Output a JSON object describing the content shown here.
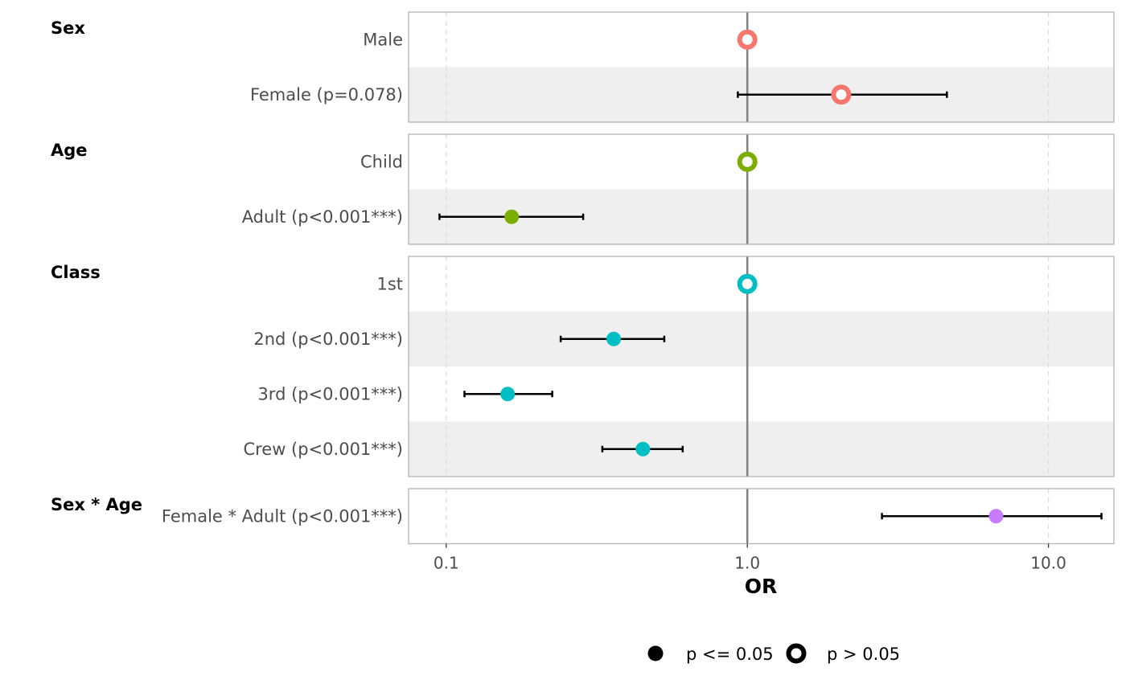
{
  "chart_data": {
    "type": "scatter",
    "xlabel": "OR",
    "x_scale": "log",
    "xlim": [
      0.075,
      16.5
    ],
    "x_ticks": [
      {
        "value": 0.1,
        "label": "0.1"
      },
      {
        "value": 1.0,
        "label": "1.0"
      },
      {
        "value": 10.0,
        "label": "10.0"
      }
    ],
    "reference_line": 1.0,
    "grid": true,
    "groups": [
      {
        "name": "Sex",
        "color": "#f8766d",
        "rows": [
          {
            "label": "Male",
            "or": 1.0,
            "lower": null,
            "upper": null,
            "significant": false
          },
          {
            "label": "Female (p=0.078)",
            "or": 2.05,
            "lower": 0.93,
            "upper": 4.6,
            "significant": false
          }
        ]
      },
      {
        "name": "Age",
        "color": "#7cae00",
        "rows": [
          {
            "label": "Child",
            "or": 1.0,
            "lower": null,
            "upper": null,
            "significant": false
          },
          {
            "label": "Adult (p<0.001***)",
            "or": 0.165,
            "lower": 0.095,
            "upper": 0.285,
            "significant": true
          }
        ]
      },
      {
        "name": "Class",
        "color": "#00bfc4",
        "rows": [
          {
            "label": "1st",
            "or": 1.0,
            "lower": null,
            "upper": null,
            "significant": false
          },
          {
            "label": "2nd (p<0.001***)",
            "or": 0.36,
            "lower": 0.24,
            "upper": 0.53,
            "significant": true
          },
          {
            "label": "3rd (p<0.001***)",
            "or": 0.16,
            "lower": 0.115,
            "upper": 0.225,
            "significant": true
          },
          {
            "label": "Crew (p<0.001***)",
            "or": 0.45,
            "lower": 0.33,
            "upper": 0.61,
            "significant": true
          }
        ]
      },
      {
        "name": "Sex * Age",
        "color": "#c77cff",
        "rows": [
          {
            "label": "Female * Adult (p<0.001***)",
            "or": 6.7,
            "lower": 2.8,
            "upper": 15.0,
            "significant": true
          }
        ]
      }
    ],
    "legend": {
      "placement": "bottom",
      "items": [
        {
          "label": "p <= 0.05",
          "marker": "filled"
        },
        {
          "label": "p > 0.05",
          "marker": "hollow"
        }
      ]
    }
  }
}
